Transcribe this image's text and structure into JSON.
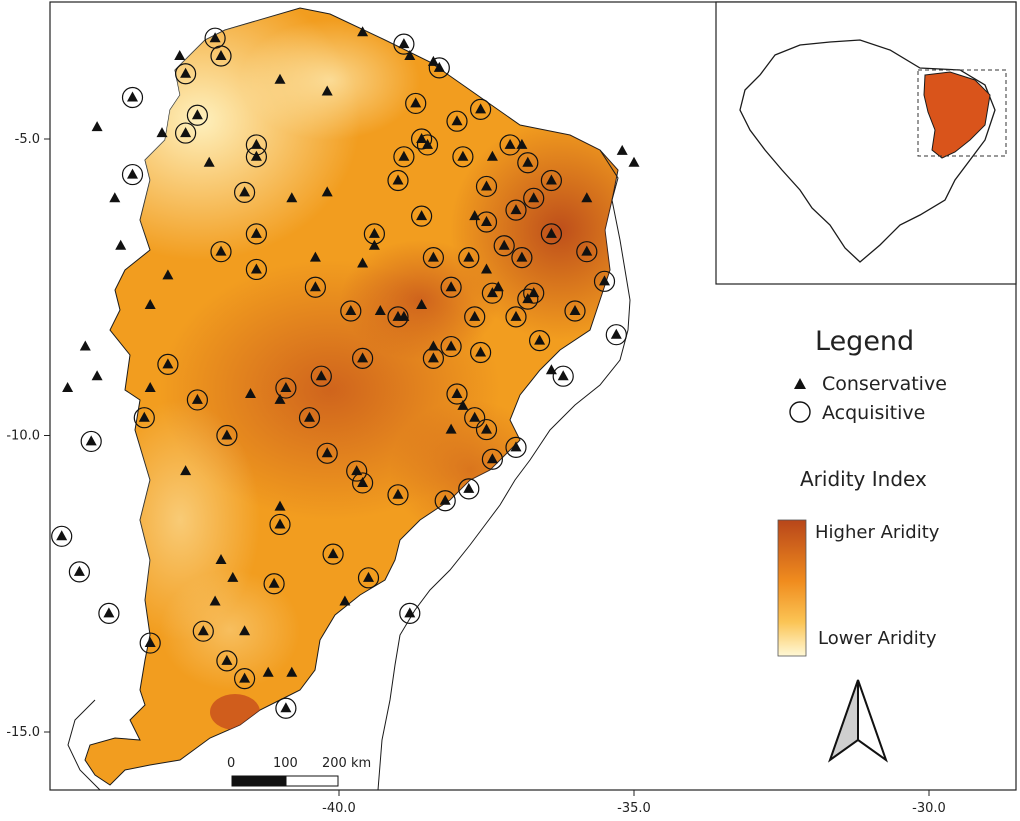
{
  "map": {
    "axis": {
      "y_ticks": [
        {
          "value": -5.0,
          "label": "-5.0"
        },
        {
          "value": -10.0,
          "label": "-10.0"
        },
        {
          "value": -15.0,
          "label": "-15.0"
        }
      ],
      "x_ticks": [
        {
          "value": -40.0,
          "label": "-40.0"
        },
        {
          "value": -35.0,
          "label": "-35.0"
        },
        {
          "value": -30.0,
          "label": "-30.0"
        }
      ]
    },
    "colors": {
      "high_aridity": "#b8461a",
      "mid_aridity": "#f09a1e",
      "low_aridity": "#fff5c6",
      "inset_region": "#d9541b",
      "frame": "#222222"
    },
    "conservative_sites": [
      [
        -39.6,
        -3.2
      ],
      [
        -42.7,
        -3.6
      ],
      [
        -41.0,
        -4.0
      ],
      [
        -40.2,
        -4.2
      ],
      [
        -44.1,
        -4.8
      ],
      [
        -43.0,
        -4.9
      ],
      [
        -42.2,
        -5.4
      ],
      [
        -40.8,
        -6.0
      ],
      [
        -43.8,
        -6.0
      ],
      [
        -43.7,
        -6.8
      ],
      [
        -42.9,
        -7.3
      ],
      [
        -43.2,
        -7.8
      ],
      [
        -44.3,
        -8.5
      ],
      [
        -44.1,
        -9.0
      ],
      [
        -43.2,
        -9.2
      ],
      [
        -44.6,
        -9.2
      ],
      [
        -41.5,
        -9.3
      ],
      [
        -41.0,
        -9.4
      ],
      [
        -42.6,
        -10.6
      ],
      [
        -41.0,
        -11.2
      ],
      [
        -42.0,
        -12.1
      ],
      [
        -41.8,
        -12.4
      ],
      [
        -42.1,
        -12.8
      ],
      [
        -39.9,
        -12.8
      ],
      [
        -41.6,
        -13.3
      ],
      [
        -41.2,
        -14.0
      ],
      [
        -40.8,
        -14.0
      ],
      [
        -39.3,
        -7.9
      ],
      [
        -38.9,
        -8.0
      ],
      [
        -38.6,
        -7.8
      ],
      [
        -37.5,
        -7.2
      ],
      [
        -37.3,
        -7.5
      ],
      [
        -36.9,
        -5.1
      ],
      [
        -35.8,
        -6.0
      ],
      [
        -38.8,
        -3.6
      ],
      [
        -38.4,
        -3.7
      ],
      [
        -37.4,
        -5.3
      ],
      [
        -37.7,
        -6.3
      ],
      [
        -35.2,
        -5.2
      ],
      [
        -35.0,
        -5.4
      ],
      [
        -36.4,
        -8.9
      ],
      [
        -37.9,
        -9.5
      ],
      [
        -38.4,
        -8.5
      ],
      [
        -38.1,
        -9.9
      ],
      [
        -39.6,
        -7.1
      ],
      [
        -40.4,
        -7.0
      ],
      [
        -39.4,
        -6.8
      ],
      [
        -40.2,
        -5.9
      ]
    ],
    "acquisitive_sites": [
      [
        -42.1,
        -3.3
      ],
      [
        -42.0,
        -3.6
      ],
      [
        -42.6,
        -3.9
      ],
      [
        -43.5,
        -4.3
      ],
      [
        -42.4,
        -4.6
      ],
      [
        -42.6,
        -4.9
      ],
      [
        -41.4,
        -5.1
      ],
      [
        -41.4,
        -5.3
      ],
      [
        -41.6,
        -5.9
      ],
      [
        -41.4,
        -6.6
      ],
      [
        -42.0,
        -6.9
      ],
      [
        -41.4,
        -7.2
      ],
      [
        -43.5,
        -5.6
      ],
      [
        -38.9,
        -3.4
      ],
      [
        -38.3,
        -3.8
      ],
      [
        -38.7,
        -4.4
      ],
      [
        -38.6,
        -5.0
      ],
      [
        -38.9,
        -5.3
      ],
      [
        -39.0,
        -5.7
      ],
      [
        -37.1,
        -5.1
      ],
      [
        -36.8,
        -5.4
      ],
      [
        -36.4,
        -5.7
      ],
      [
        -37.5,
        -5.8
      ],
      [
        -37.0,
        -6.2
      ],
      [
        -36.4,
        -6.6
      ],
      [
        -35.8,
        -6.9
      ],
      [
        -35.5,
        -7.4
      ],
      [
        -36.0,
        -7.9
      ],
      [
        -35.3,
        -8.3
      ],
      [
        -36.9,
        -7.0
      ],
      [
        -37.4,
        -7.6
      ],
      [
        -36.7,
        -7.6
      ],
      [
        -37.0,
        -8.0
      ],
      [
        -37.6,
        -8.6
      ],
      [
        -38.1,
        -8.5
      ],
      [
        -38.4,
        -8.7
      ],
      [
        -38.0,
        -9.3
      ],
      [
        -37.7,
        -9.7
      ],
      [
        -37.5,
        -9.9
      ],
      [
        -37.0,
        -10.2
      ],
      [
        -37.4,
        -10.4
      ],
      [
        -37.8,
        -10.9
      ],
      [
        -38.2,
        -11.1
      ],
      [
        -39.0,
        -11.0
      ],
      [
        -39.6,
        -10.8
      ],
      [
        -39.7,
        -10.6
      ],
      [
        -40.2,
        -10.3
      ],
      [
        -40.5,
        -9.7
      ],
      [
        -40.9,
        -9.2
      ],
      [
        -40.3,
        -9.0
      ],
      [
        -39.6,
        -8.7
      ],
      [
        -39.8,
        -7.9
      ],
      [
        -40.4,
        -7.5
      ],
      [
        -39.4,
        -6.6
      ],
      [
        -38.6,
        -6.3
      ],
      [
        -38.4,
        -7.0
      ],
      [
        -38.1,
        -7.5
      ],
      [
        -37.8,
        -7.0
      ],
      [
        -37.5,
        -6.4
      ],
      [
        -36.7,
        -6.0
      ],
      [
        -37.9,
        -5.3
      ],
      [
        -38.5,
        -5.1
      ],
      [
        -38.0,
        -4.7
      ],
      [
        -37.6,
        -4.5
      ],
      [
        -41.0,
        -11.5
      ],
      [
        -41.9,
        -10.0
      ],
      [
        -42.4,
        -9.4
      ],
      [
        -42.9,
        -8.8
      ],
      [
        -43.3,
        -9.7
      ],
      [
        -44.2,
        -10.1
      ],
      [
        -44.7,
        -11.7
      ],
      [
        -44.4,
        -12.3
      ],
      [
        -43.9,
        -13.0
      ],
      [
        -43.2,
        -13.5
      ],
      [
        -42.3,
        -13.3
      ],
      [
        -41.9,
        -13.8
      ],
      [
        -41.6,
        -14.1
      ],
      [
        -40.9,
        -14.6
      ],
      [
        -41.1,
        -12.5
      ],
      [
        -40.1,
        -12.0
      ],
      [
        -39.5,
        -12.4
      ],
      [
        -38.8,
        -13.0
      ],
      [
        -36.2,
        -9.0
      ],
      [
        -36.6,
        -8.4
      ],
      [
        -36.8,
        -7.7
      ],
      [
        -37.2,
        -6.8
      ],
      [
        -37.7,
        -8.0
      ],
      [
        -39.0,
        -8.0
      ]
    ]
  },
  "legend": {
    "title": "Legend",
    "items": [
      {
        "symbol": "triangle",
        "label": "Conservative"
      },
      {
        "symbol": "circle",
        "label": "Acquisitive"
      }
    ]
  },
  "aridity": {
    "title": "Aridity Index",
    "high_label": "Higher Aridity",
    "low_label": "Lower Aridity"
  },
  "scale_bar": {
    "labels": [
      "0",
      "100",
      "200 km"
    ]
  },
  "north_arrow": {
    "icon": "north-arrow-icon"
  },
  "inset": {
    "icon": "brazil-locator-map"
  }
}
